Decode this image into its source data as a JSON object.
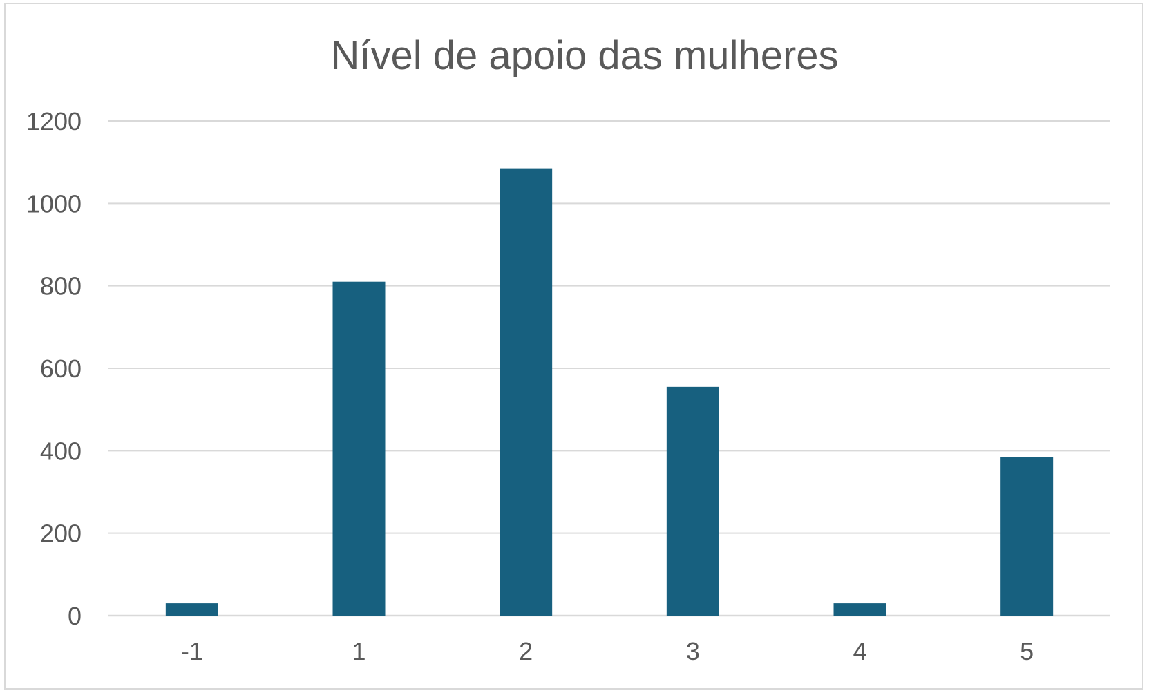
{
  "chart_data": {
    "type": "bar",
    "title": "Nível de apoio das mulheres",
    "xlabel": "",
    "ylabel": "",
    "categories": [
      "-1",
      "1",
      "2",
      "3",
      "4",
      "5"
    ],
    "values": [
      30,
      810,
      1085,
      555,
      30,
      385
    ],
    "ylim": [
      0,
      1200
    ],
    "yticks": [
      "0",
      "200",
      "400",
      "600",
      "800",
      "1000",
      "1200"
    ],
    "grid": true,
    "legend": "none",
    "bar_color": "#17607f",
    "grid_color": "#d9d9d9",
    "text_color": "#595959"
  }
}
